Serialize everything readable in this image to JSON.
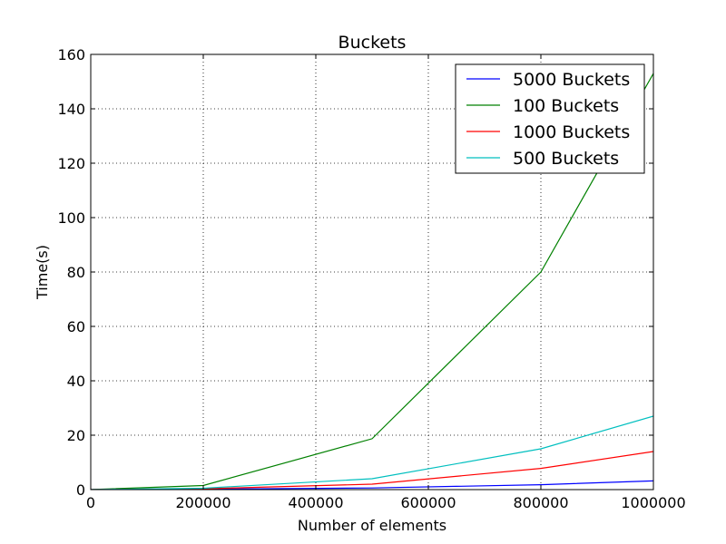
{
  "chart_data": {
    "type": "line",
    "title": "Buckets",
    "xlabel": "Number of elements",
    "ylabel": "Time(s)",
    "xlim": [
      0,
      1000000
    ],
    "ylim": [
      0,
      160
    ],
    "x_ticks": [
      0,
      200000,
      400000,
      600000,
      800000,
      1000000
    ],
    "x_tick_labels": [
      "0",
      "200000",
      "400000",
      "600000",
      "800000",
      "1000000"
    ],
    "y_ticks": [
      0,
      20,
      40,
      60,
      80,
      100,
      120,
      140,
      160
    ],
    "y_tick_labels": [
      "0",
      "20",
      "40",
      "60",
      "80",
      "100",
      "120",
      "140",
      "160"
    ],
    "grid": true,
    "legend_position": "top-right",
    "x": [
      0,
      200000,
      500000,
      800000,
      1000000
    ],
    "series": [
      {
        "name": "5000 Buckets",
        "color": "#0000ff",
        "values": [
          0.0,
          0.15,
          0.6,
          1.8,
          3.2
        ]
      },
      {
        "name": "100 Buckets",
        "color": "#008000",
        "values": [
          0.0,
          1.5,
          18.7,
          80.0,
          153.0
        ]
      },
      {
        "name": "1000 Buckets",
        "color": "#ff0000",
        "values": [
          0.0,
          0.3,
          2.0,
          7.8,
          14.0
        ]
      },
      {
        "name": "500 Buckets",
        "color": "#00bfbf",
        "values": [
          0.0,
          0.5,
          4.0,
          15.0,
          27.0
        ]
      }
    ]
  }
}
